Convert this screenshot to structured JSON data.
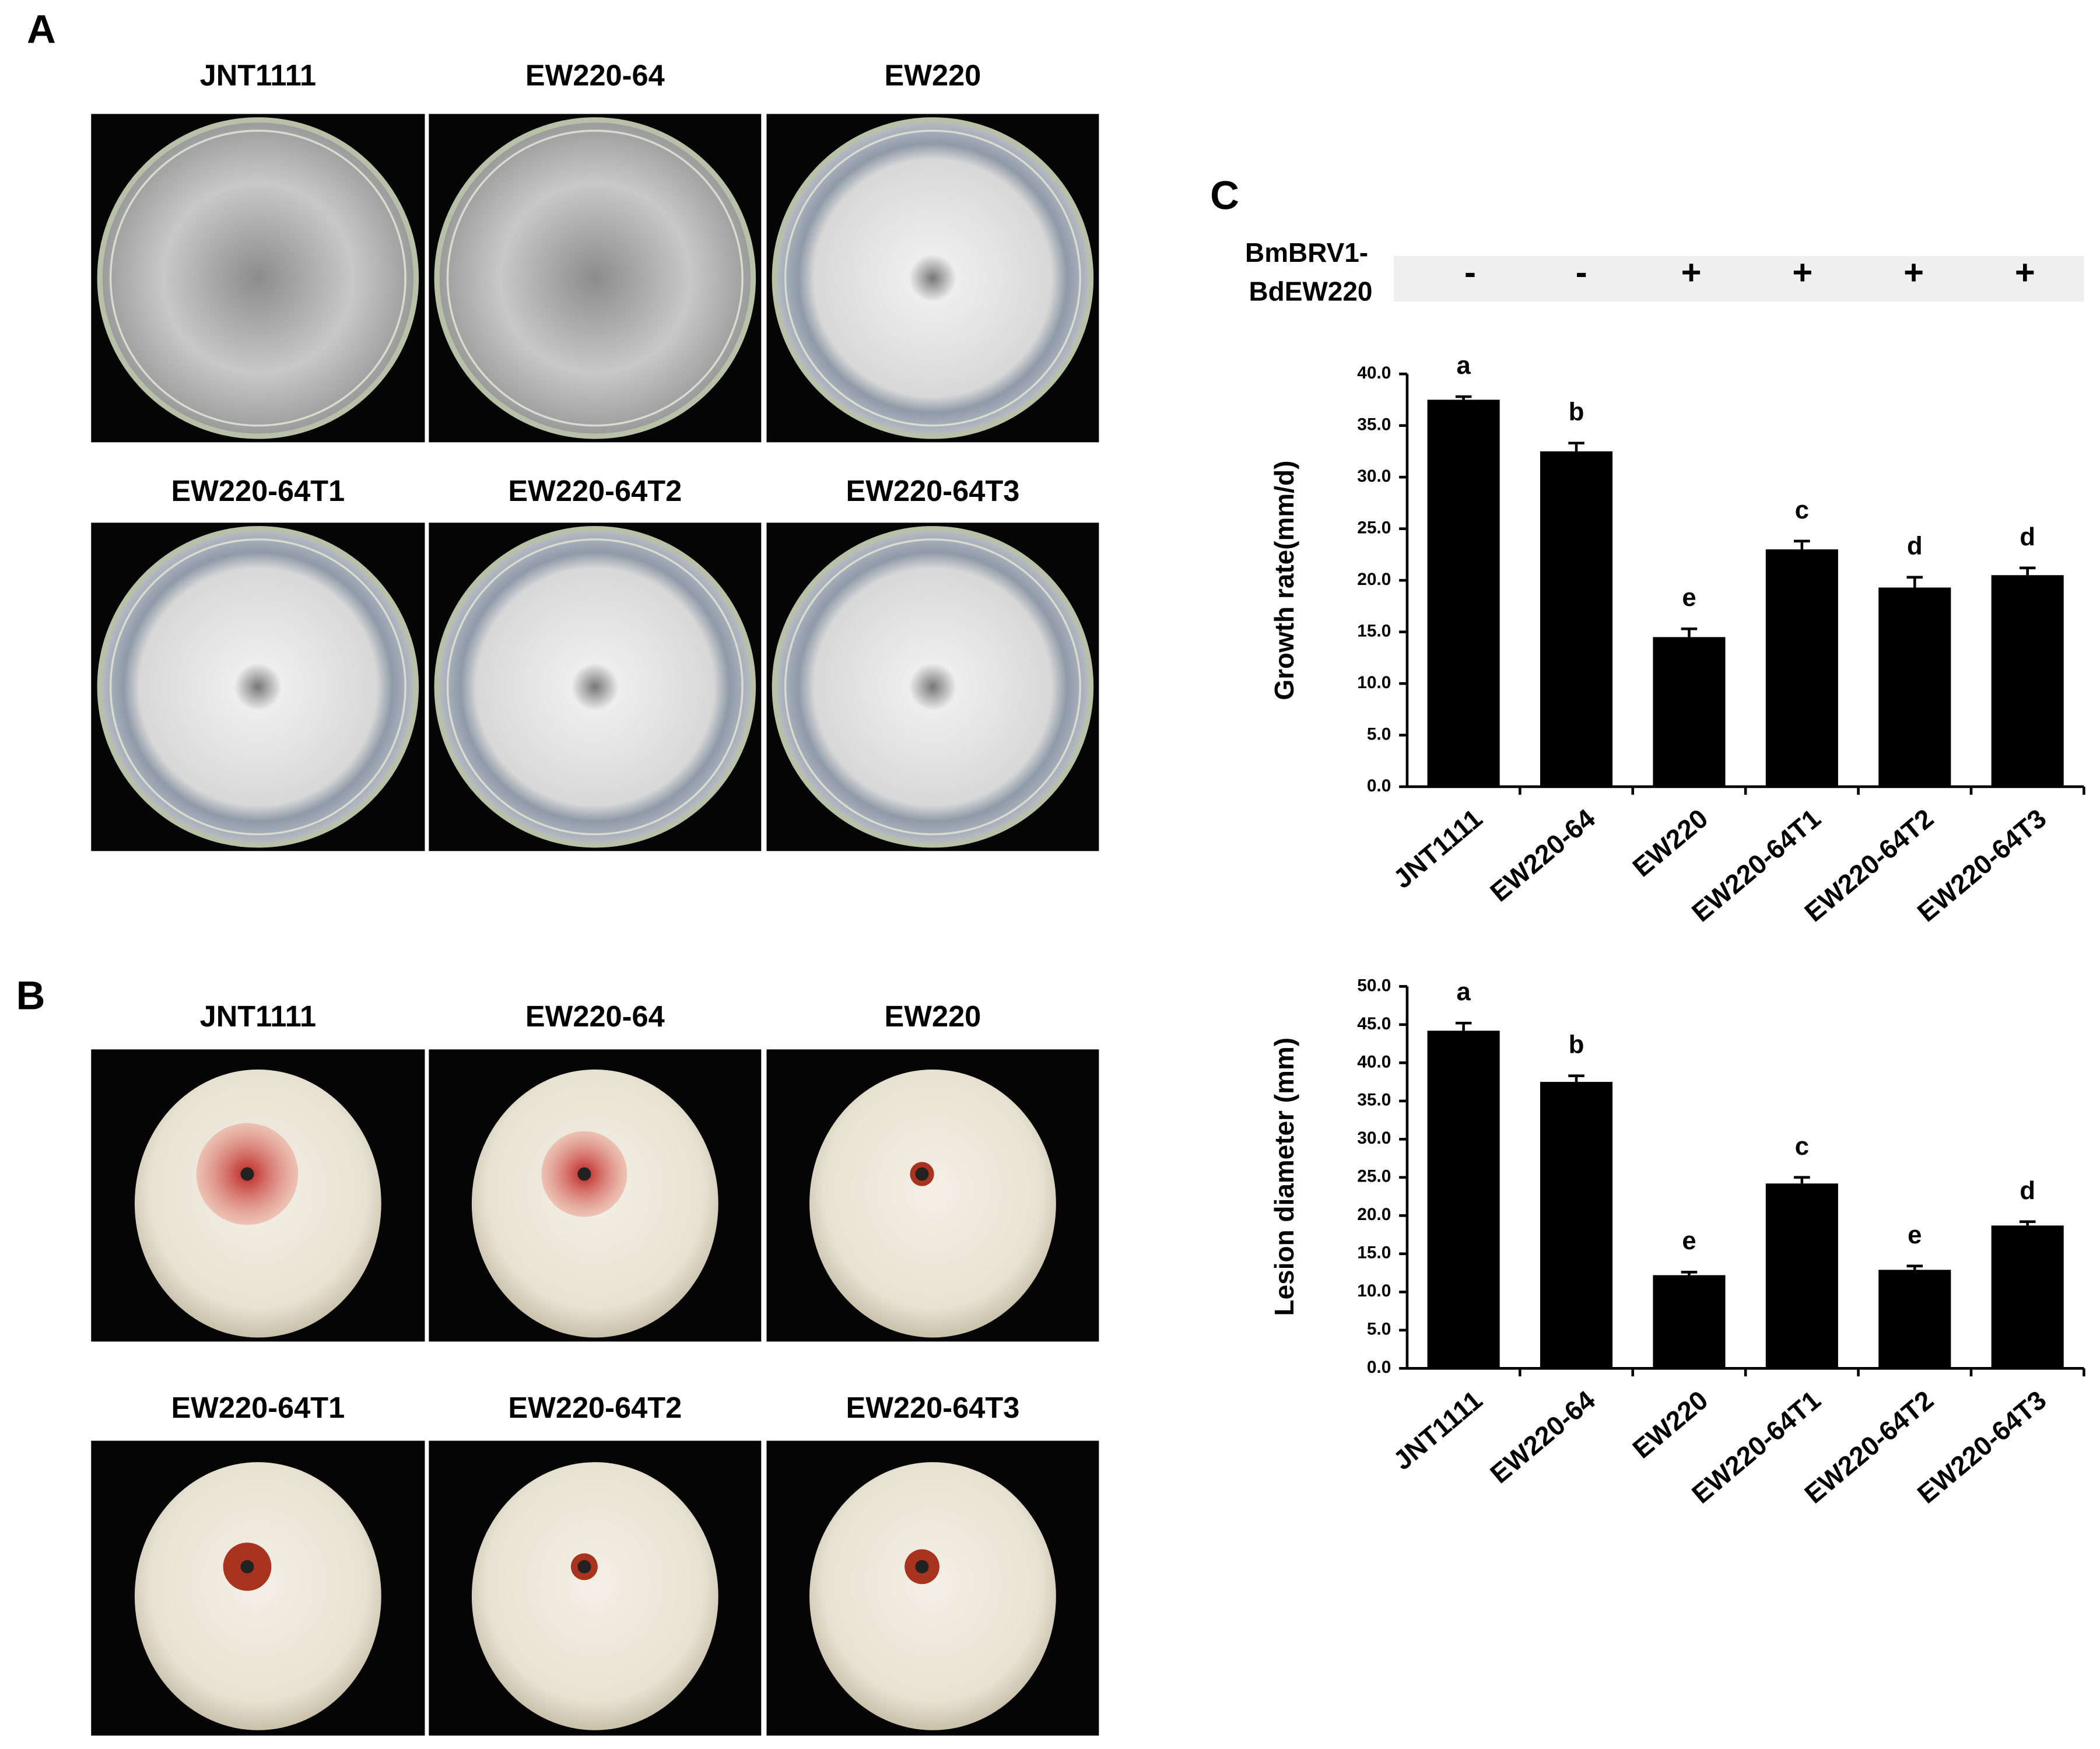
{
  "panel_labels": [
    "A",
    "B",
    "C"
  ],
  "panel_a": {
    "labels": [
      "JNT1111",
      "EW220-64",
      "EW220",
      "EW220-64T1",
      "EW220-64T2",
      "EW220-64T3"
    ]
  },
  "panel_b": {
    "labels": [
      "JNT1111",
      "EW220-64",
      "EW220",
      "EW220-64T1",
      "EW220-64T2",
      "EW220-64T3"
    ]
  },
  "panel_c": {
    "row_label": [
      "BmBRV1-",
      "BdEW220"
    ],
    "signs": [
      "-",
      "-",
      "+",
      "+",
      "+",
      "+"
    ]
  },
  "chart_data": [
    {
      "type": "bar",
      "y_label": "Growth rate(mm/d)",
      "categories": [
        "JNT1111",
        "EW220-64",
        "EW220",
        "EW220-64T1",
        "EW220-64T2",
        "EW220-64T3"
      ],
      "values": [
        37.5,
        32.5,
        14.5,
        23.0,
        19.3,
        20.5
      ],
      "errors": [
        0.3,
        0.8,
        0.8,
        0.8,
        1.0,
        0.7
      ],
      "annotations": [
        "a",
        "b",
        "e",
        "c",
        "d",
        "d"
      ],
      "color": "#000000",
      "ylim": [
        0,
        40
      ],
      "yticks": [
        {
          "value": 0,
          "label": "0.0"
        },
        {
          "value": 5,
          "label": "5.0"
        },
        {
          "value": 10,
          "label": "10.0"
        },
        {
          "value": 15,
          "label": "15.0"
        },
        {
          "value": 20,
          "label": "20.0"
        },
        {
          "value": 25,
          "label": "25.0"
        },
        {
          "value": 30,
          "label": "30.0"
        },
        {
          "value": 35,
          "label": "35.0"
        },
        {
          "value": 40,
          "label": "40.0"
        }
      ]
    },
    {
      "type": "bar",
      "y_label": "Lesion diameter (mm)",
      "categories": [
        "JNT1111",
        "EW220-64",
        "EW220",
        "EW220-64T1",
        "EW220-64T2",
        "EW220-64T3"
      ],
      "values": [
        44.2,
        37.5,
        12.2,
        24.2,
        12.9,
        18.7
      ],
      "errors": [
        1.0,
        0.8,
        0.4,
        0.8,
        0.5,
        0.5
      ],
      "annotations": [
        "a",
        "b",
        "e",
        "c",
        "e",
        "d"
      ],
      "color": "#000000",
      "ylim": [
        0,
        50
      ],
      "yticks": [
        {
          "value": 0,
          "label": "0.0"
        },
        {
          "value": 5,
          "label": "5.0"
        },
        {
          "value": 10,
          "label": "10.0"
        },
        {
          "value": 15,
          "label": "15.0"
        },
        {
          "value": 20,
          "label": "20.0"
        },
        {
          "value": 25,
          "label": "25.0"
        },
        {
          "value": 30,
          "label": "30.0"
        },
        {
          "value": 35,
          "label": "35.0"
        },
        {
          "value": 40,
          "label": "40.0"
        },
        {
          "value": 45,
          "label": "45.0"
        },
        {
          "value": 50,
          "label": "50.0"
        }
      ]
    }
  ]
}
